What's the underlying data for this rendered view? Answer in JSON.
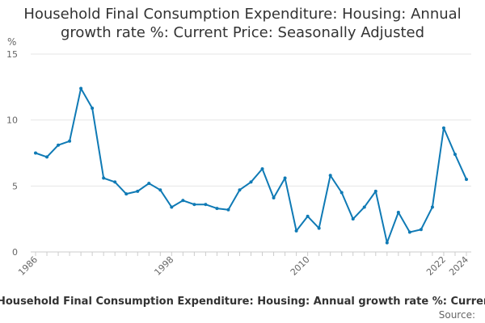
{
  "chart_data": {
    "type": "line",
    "title_lines": [
      "Household Final Consumption Expenditure: Housing: Annual",
      "growth rate %: Current Price: Seasonally Adjusted"
    ],
    "ylabel": "%",
    "ylim": [
      0,
      15
    ],
    "yticks": [
      0,
      5,
      10,
      15
    ],
    "xlim": [
      1986,
      2024
    ],
    "xticks": [
      1986,
      1998,
      2010,
      2022,
      2024
    ],
    "grid": true,
    "legend_position": "bottom",
    "series": [
      {
        "name": "Household Final Consumption Expenditure: Housing: Annual growth rate %: Current Price: Seasonally Adjusted",
        "color": "#0f7ab5",
        "x": [
          1986,
          1987,
          1988,
          1989,
          1990,
          1991,
          1992,
          1993,
          1994,
          1995,
          1996,
          1997,
          1998,
          1999,
          2000,
          2001,
          2002,
          2003,
          2004,
          2005,
          2006,
          2007,
          2008,
          2009,
          2010,
          2011,
          2012,
          2013,
          2014,
          2015,
          2016,
          2017,
          2018,
          2019,
          2020,
          2021,
          2022,
          2023,
          2024
        ],
        "values": [
          7.5,
          7.2,
          8.1,
          8.4,
          12.4,
          10.9,
          5.6,
          5.3,
          4.4,
          4.6,
          5.2,
          4.7,
          3.4,
          3.9,
          3.6,
          3.6,
          3.3,
          3.2,
          4.7,
          5.3,
          6.3,
          4.1,
          5.6,
          1.6,
          2.7,
          1.8,
          5.8,
          4.5,
          2.5,
          3.4,
          4.6,
          0.7,
          3.0,
          1.5,
          1.7,
          3.4,
          9.4,
          7.4,
          5.5
        ]
      }
    ],
    "source_label": "Source:"
  }
}
